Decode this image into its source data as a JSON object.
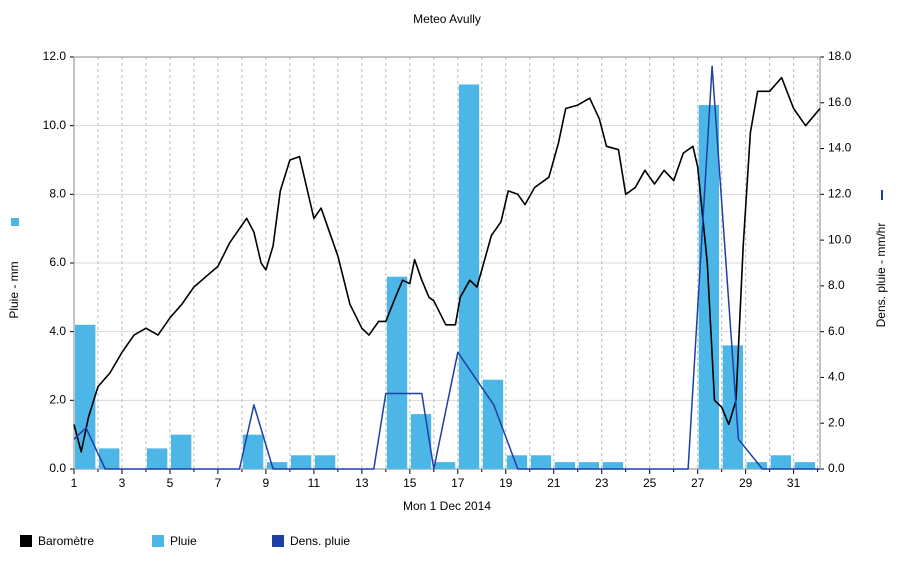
{
  "chart_data": {
    "type": "combo",
    "title": "Meteo  Avully",
    "x_label": "Mon 1 Dec 2014",
    "y_label": "Pluie - mm",
    "y2_label": "Dens. pluie - mm/hr",
    "xlim": [
      1,
      32.1
    ],
    "xticks": [
      1,
      3,
      5,
      7,
      9,
      11,
      13,
      15,
      17,
      19,
      21,
      23,
      25,
      27,
      29,
      31
    ],
    "xminorticks": [
      2,
      4,
      6,
      8,
      10,
      12,
      14,
      16,
      18,
      20,
      22,
      24,
      26,
      28,
      30,
      32
    ],
    "ylim": [
      0,
      12
    ],
    "yticks": [
      {
        "value": 0,
        "label": "0.0"
      },
      {
        "value": 2,
        "label": "2.0"
      },
      {
        "value": 4,
        "label": "4.0"
      },
      {
        "value": 6,
        "label": "6.0"
      },
      {
        "value": 8,
        "label": "8.0"
      },
      {
        "value": 10,
        "label": "10.0"
      },
      {
        "value": 12,
        "label": "12.0"
      }
    ],
    "y2lim": [
      0,
      18
    ],
    "y2ticks": [
      {
        "value": 0,
        "label": "0.0"
      },
      {
        "value": 2,
        "label": "2.0"
      },
      {
        "value": 4,
        "label": "4.0"
      },
      {
        "value": 6,
        "label": "6.0"
      },
      {
        "value": 8,
        "label": "8.0"
      },
      {
        "value": 10,
        "label": "10.0"
      },
      {
        "value": 12,
        "label": "12.0"
      },
      {
        "value": 14,
        "label": "14.0"
      },
      {
        "value": 16,
        "label": "16.0"
      },
      {
        "value": 18,
        "label": "18.0"
      }
    ],
    "grid": true,
    "series": [
      {
        "name": "Baromètre",
        "type": "line",
        "color": "#000000",
        "x": [
          1,
          1.3,
          1.6,
          2,
          2.5,
          3,
          3.5,
          4,
          4.5,
          5,
          5.5,
          6,
          6.5,
          7,
          7.5,
          8,
          8.2,
          8.5,
          8.8,
          9,
          9.3,
          9.6,
          10,
          10.4,
          10.7,
          11,
          11.3,
          11.6,
          12,
          12.5,
          13,
          13.3,
          13.7,
          14,
          14.4,
          14.7,
          15,
          15.2,
          15.5,
          15.8,
          16,
          16.5,
          16.9,
          17.1,
          17.5,
          17.8,
          18,
          18.4,
          18.8,
          19.1,
          19.5,
          19.8,
          20.2,
          20.8,
          21.2,
          21.5,
          22,
          22.5,
          22.9,
          23.2,
          23.7,
          24,
          24.4,
          24.8,
          25.2,
          25.6,
          26,
          26.4,
          26.8,
          27,
          27.4,
          27.7,
          28,
          28.3,
          28.6,
          28.9,
          29.2,
          29.5,
          30,
          30.5,
          31,
          31.5,
          32.1
        ],
        "values": [
          1.3,
          0.5,
          1.5,
          2.4,
          2.8,
          3.4,
          3.9,
          4.1,
          3.9,
          4.4,
          4.8,
          5.3,
          5.6,
          5.9,
          6.6,
          7.1,
          7.3,
          6.9,
          6.0,
          5.8,
          6.5,
          8.1,
          9.0,
          9.1,
          8.2,
          7.3,
          7.6,
          7.0,
          6.2,
          4.8,
          4.1,
          3.9,
          4.3,
          4.3,
          5.0,
          5.5,
          5.4,
          6.1,
          5.5,
          5.0,
          4.9,
          4.2,
          4.2,
          5.0,
          5.5,
          5.3,
          5.8,
          6.8,
          7.2,
          8.1,
          8.0,
          7.7,
          8.2,
          8.5,
          9.5,
          10.5,
          10.6,
          10.8,
          10.2,
          9.4,
          9.3,
          8.0,
          8.2,
          8.7,
          8.3,
          8.7,
          8.4,
          9.2,
          9.4,
          8.8,
          6.0,
          2.0,
          1.8,
          1.3,
          2.0,
          6.5,
          9.8,
          11.0,
          11.0,
          11.4,
          10.5,
          10.0,
          10.5
        ]
      },
      {
        "name": "Pluie",
        "type": "bar",
        "color": "#4cb6e6",
        "x": [
          1,
          2,
          3,
          4,
          5,
          6,
          7,
          8,
          9,
          10,
          11,
          12,
          13,
          14,
          15,
          16,
          17,
          18,
          19,
          20,
          21,
          22,
          23,
          24,
          25,
          26,
          27,
          28,
          29,
          30,
          31
        ],
        "values": [
          4.2,
          0.6,
          0,
          0.6,
          1.0,
          0,
          0,
          1.0,
          0.2,
          0.4,
          0.4,
          0,
          0,
          5.6,
          1.6,
          0.2,
          11.2,
          2.6,
          0.4,
          0.4,
          0.2,
          0.2,
          0.2,
          0,
          0,
          0,
          10.6,
          3.6,
          0.2,
          0.4,
          0.2
        ]
      },
      {
        "name": "Dens. pluie",
        "type": "line",
        "axis": "y2",
        "color": "#1f3fa8",
        "x": [
          1,
          1.5,
          2.3,
          7.9,
          8.5,
          9.3,
          13.5,
          14.0,
          15.5,
          16.0,
          17.0,
          18.5,
          19.5,
          26.6,
          27.6,
          28.7,
          29.7,
          32.1
        ],
        "values": [
          1.3,
          1.8,
          0,
          0,
          2.8,
          0,
          0,
          3.3,
          3.3,
          0,
          5.1,
          2.8,
          0,
          0,
          17.6,
          1.3,
          0,
          0
        ]
      }
    ]
  }
}
